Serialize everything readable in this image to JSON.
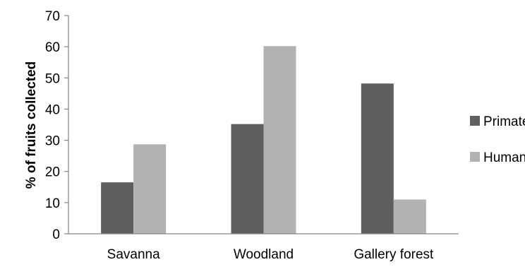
{
  "chart_data": {
    "type": "bar",
    "categories": [
      "Savanna",
      "Woodland",
      "Gallery forest"
    ],
    "series": [
      {
        "name": "Primates",
        "values": [
          16.5,
          35.2,
          48.2
        ],
        "color": "#5f5f5f"
      },
      {
        "name": "Humans",
        "values": [
          28.7,
          60.2,
          11.0
        ],
        "color": "#b2b2b2"
      }
    ],
    "ylabel": "% of fruits collected",
    "xlabel": "",
    "title": "",
    "ylim": [
      0,
      70
    ],
    "yticks": [
      0,
      10,
      20,
      30,
      40,
      50,
      60,
      70
    ],
    "grid": false,
    "legend_position": "right"
  }
}
